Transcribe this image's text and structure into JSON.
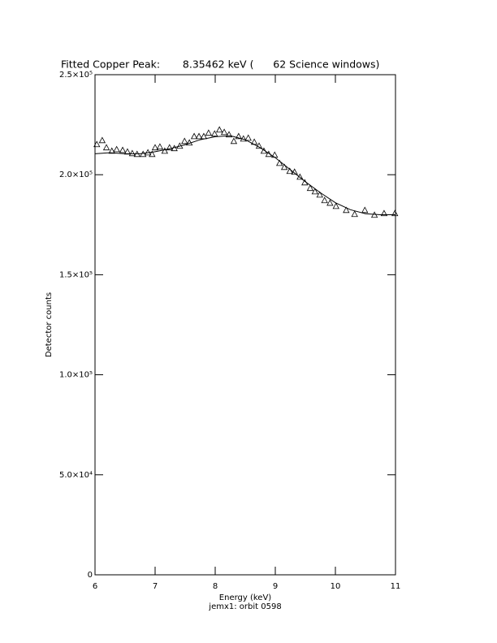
{
  "chart_data": {
    "type": "scatter",
    "title": "Fitted Copper Peak:       8.35462 keV (      62 Science windows)",
    "x_label": "Energy (keV)",
    "subtitle": "jemx1: orbit 0598",
    "y_label": "Detector counts",
    "xlim": [
      6,
      11
    ],
    "ylim": [
      0,
      250000
    ],
    "xticks": [
      6,
      7,
      8,
      9,
      10,
      11
    ],
    "yticks": [
      {
        "value": 0,
        "label": "0"
      },
      {
        "value": 50000,
        "label": "5.0×10⁴"
      },
      {
        "value": 100000,
        "label": "1.0×10⁵"
      },
      {
        "value": 150000,
        "label": "1.5×10⁵"
      },
      {
        "value": 200000,
        "label": "2.0×10⁵"
      },
      {
        "value": 250000,
        "label": "2.5×10⁵"
      }
    ],
    "color": "#000000",
    "points": {
      "x": [
        6.03,
        6.12,
        6.19,
        6.28,
        6.36,
        6.46,
        6.54,
        6.62,
        6.7,
        6.8,
        6.88,
        6.95,
        7.0,
        7.08,
        7.16,
        7.24,
        7.32,
        7.41,
        7.49,
        7.57,
        7.65,
        7.73,
        7.81,
        7.89,
        7.99,
        8.07,
        8.15,
        8.23,
        8.31,
        8.39,
        8.47,
        8.55,
        8.65,
        8.73,
        8.81,
        8.89,
        8.99,
        9.07,
        9.15,
        9.24,
        9.32,
        9.41,
        9.49,
        9.58,
        9.66,
        9.74,
        9.82,
        9.91,
        10.01,
        10.18,
        10.32,
        10.49,
        10.65,
        10.81,
        10.99
      ],
      "values": [
        215200,
        217200,
        213600,
        211900,
        212700,
        212300,
        211500,
        210700,
        210300,
        210300,
        211100,
        210300,
        213600,
        214000,
        211900,
        213600,
        213200,
        214400,
        216800,
        216000,
        219200,
        219200,
        219200,
        220900,
        220500,
        222500,
        221300,
        220100,
        216800,
        219200,
        218000,
        218400,
        216400,
        214400,
        211900,
        210300,
        209900,
        205800,
        203800,
        201800,
        201400,
        198900,
        196100,
        193300,
        191600,
        190000,
        187200,
        185900,
        184300,
        182300,
        180300,
        182300,
        179900,
        180700,
        180700
      ]
    },
    "fit": {
      "x": [
        6.0,
        6.25,
        6.5,
        6.75,
        7.0,
        7.25,
        7.5,
        7.75,
        8.0,
        8.25,
        8.5,
        8.75,
        9.0,
        9.25,
        9.5,
        9.75,
        10.0,
        10.25,
        10.5,
        10.75,
        11.0
      ],
      "values": [
        210500,
        211000,
        210500,
        210500,
        211500,
        213000,
        215000,
        217500,
        219000,
        219500,
        217500,
        213500,
        208500,
        202500,
        196500,
        191000,
        186000,
        182500,
        180500,
        180000,
        180000
      ]
    }
  }
}
